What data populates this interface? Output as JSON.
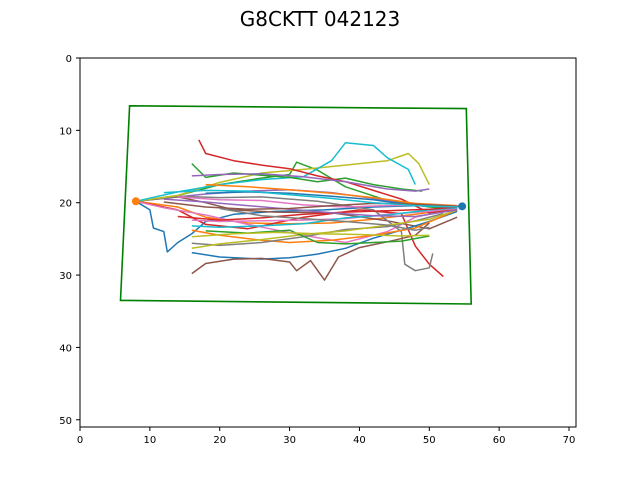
{
  "chart_data": {
    "type": "line",
    "title": "G8CKTT 042123",
    "xlabel": "",
    "ylabel": "",
    "xlim": [
      0,
      71
    ],
    "ylim": [
      51,
      0
    ],
    "y_inverted": true,
    "grid": false,
    "x_ticks": [
      0,
      10,
      20,
      30,
      40,
      50,
      60,
      70
    ],
    "y_ticks": [
      0,
      10,
      20,
      30,
      40,
      50
    ],
    "boundary": {
      "color": "#008000",
      "points": [
        [
          7.1,
          6.6
        ],
        [
          55.3,
          7.0
        ],
        [
          56.0,
          34.0
        ],
        [
          5.8,
          33.5
        ]
      ]
    },
    "start_marker": {
      "x": 8.0,
      "y": 19.8,
      "color": "#ff7f0e"
    },
    "end_marker": {
      "x": 54.7,
      "y": 20.5,
      "color": "#1f77b4"
    },
    "series": [
      {
        "color": "#1f77b4",
        "points": [
          [
            8,
            19.8
          ],
          [
            10,
            21
          ],
          [
            10.5,
            23.5
          ],
          [
            12,
            24
          ],
          [
            12.5,
            26.8
          ],
          [
            14,
            25.5
          ],
          [
            16,
            24.3
          ],
          [
            18,
            22.6
          ],
          [
            22,
            21.6
          ],
          [
            28,
            21.2
          ],
          [
            35,
            21
          ],
          [
            42,
            20.6
          ],
          [
            48,
            20.4
          ],
          [
            54.7,
            20.5
          ]
        ]
      },
      {
        "color": "#ff7f0e",
        "points": [
          [
            8,
            19.8
          ],
          [
            14,
            20.6
          ],
          [
            18,
            22
          ],
          [
            24,
            22.8
          ],
          [
            30,
            22.9
          ],
          [
            36,
            22.8
          ],
          [
            42,
            22.3
          ],
          [
            48,
            21.6
          ],
          [
            54,
            20.8
          ]
        ]
      },
      {
        "color": "#2ca02c",
        "points": [
          [
            8,
            19.8
          ],
          [
            14,
            19
          ],
          [
            20,
            17.5
          ],
          [
            26,
            16.6
          ],
          [
            30,
            16.1
          ],
          [
            31,
            14.4
          ],
          [
            34,
            15.5
          ],
          [
            38,
            17.8
          ],
          [
            44,
            19.7
          ],
          [
            50,
            20.6
          ],
          [
            54,
            20.8
          ]
        ]
      },
      {
        "color": "#d62728",
        "points": [
          [
            8,
            19.8
          ],
          [
            14,
            21
          ],
          [
            18,
            23
          ],
          [
            24,
            23.6
          ],
          [
            32,
            22
          ],
          [
            40,
            21
          ],
          [
            46,
            21.5
          ],
          [
            48,
            26
          ],
          [
            50,
            28.5
          ],
          [
            52,
            30.2
          ]
        ]
      },
      {
        "color": "#9467bd",
        "points": [
          [
            8,
            19.8
          ],
          [
            12,
            19.4
          ],
          [
            18,
            18.8
          ],
          [
            24,
            18.4
          ],
          [
            30,
            18.2
          ],
          [
            36,
            18.6
          ],
          [
            42,
            19.4
          ],
          [
            48,
            20.4
          ],
          [
            54,
            20.6
          ]
        ]
      },
      {
        "color": "#8c564b",
        "points": [
          [
            8,
            19.8
          ],
          [
            14,
            19.2
          ],
          [
            18,
            20
          ],
          [
            22,
            21
          ],
          [
            28,
            21.3
          ],
          [
            36,
            21.4
          ],
          [
            44,
            22.5
          ],
          [
            50,
            23.6
          ],
          [
            54,
            22
          ]
        ]
      },
      {
        "color": "#e377c2",
        "points": [
          [
            8,
            19.8
          ],
          [
            12,
            20.7
          ],
          [
            18,
            21.7
          ],
          [
            24,
            23
          ],
          [
            32,
            24.5
          ],
          [
            38,
            25.5
          ],
          [
            44,
            24
          ],
          [
            48,
            22
          ],
          [
            54,
            20.8
          ]
        ]
      },
      {
        "color": "#7f7f7f",
        "points": [
          [
            8,
            19.8
          ],
          [
            14,
            19.1
          ],
          [
            20,
            19.3
          ],
          [
            26,
            19.2
          ],
          [
            34,
            19.8
          ],
          [
            42,
            21
          ],
          [
            46,
            24
          ],
          [
            46.5,
            28.5
          ],
          [
            48,
            29.4
          ],
          [
            50,
            29
          ],
          [
            50.5,
            27
          ]
        ]
      },
      {
        "color": "#bcbd22",
        "points": [
          [
            8,
            19.8
          ],
          [
            14,
            19
          ],
          [
            20,
            17.2
          ],
          [
            26,
            15.9
          ],
          [
            32,
            15.4
          ],
          [
            38,
            14.8
          ],
          [
            44,
            14.2
          ],
          [
            47,
            13.2
          ],
          [
            48.5,
            14.6
          ],
          [
            50,
            17.5
          ]
        ]
      },
      {
        "color": "#17becf",
        "points": [
          [
            8,
            19.8
          ],
          [
            14,
            18.5
          ],
          [
            20,
            17.5
          ],
          [
            26,
            16.8
          ],
          [
            32,
            16.4
          ],
          [
            36,
            14.2
          ],
          [
            38,
            11.7
          ],
          [
            42,
            12.1
          ],
          [
            44,
            13.8
          ],
          [
            47,
            15.4
          ],
          [
            48,
            17.5
          ]
        ]
      },
      {
        "color": "#1f77b4",
        "points": [
          [
            16,
            26.9
          ],
          [
            20,
            27.5
          ],
          [
            26,
            27.8
          ],
          [
            30,
            27.6
          ],
          [
            34,
            27.1
          ],
          [
            38,
            26.3
          ],
          [
            42,
            24.9
          ],
          [
            46,
            23.8
          ],
          [
            50,
            22.6
          ],
          [
            54,
            21.2
          ]
        ]
      },
      {
        "color": "#ff7f0e",
        "points": [
          [
            16,
            23.8
          ],
          [
            20,
            24.5
          ],
          [
            26,
            25.2
          ],
          [
            30,
            25.5
          ],
          [
            36,
            25.2
          ],
          [
            42,
            24.5
          ],
          [
            48,
            23.5
          ],
          [
            54,
            21
          ]
        ]
      },
      {
        "color": "#2ca02c",
        "points": [
          [
            16,
            14.6
          ],
          [
            18,
            16.5
          ],
          [
            22,
            15.9
          ],
          [
            26,
            16.2
          ],
          [
            30,
            16.5
          ],
          [
            34,
            17.1
          ],
          [
            38,
            16.6
          ],
          [
            42,
            17.5
          ],
          [
            46,
            18.1
          ],
          [
            49,
            18.4
          ]
        ]
      },
      {
        "color": "#d62728",
        "points": [
          [
            17,
            11.3
          ],
          [
            18,
            13.2
          ],
          [
            22,
            14.2
          ],
          [
            26,
            14.8
          ],
          [
            30,
            15.3
          ],
          [
            34,
            16.3
          ],
          [
            38,
            17.1
          ],
          [
            42,
            18.3
          ],
          [
            46,
            19.5
          ],
          [
            50,
            21.4
          ],
          [
            54,
            21
          ]
        ]
      },
      {
        "color": "#9467bd",
        "points": [
          [
            16,
            16.3
          ],
          [
            20,
            16.1
          ],
          [
            26,
            16
          ],
          [
            32,
            16.4
          ],
          [
            38,
            17.1
          ],
          [
            44,
            18.1
          ],
          [
            48,
            18.4
          ],
          [
            50,
            18.1
          ]
        ]
      },
      {
        "color": "#8c564b",
        "points": [
          [
            16,
            29.8
          ],
          [
            18,
            28.4
          ],
          [
            22,
            27.8
          ],
          [
            26,
            27.7
          ],
          [
            30,
            28.2
          ],
          [
            31,
            29.4
          ],
          [
            33,
            28
          ],
          [
            35,
            30.7
          ],
          [
            37,
            27.5
          ],
          [
            40,
            26.2
          ],
          [
            44,
            25.4
          ],
          [
            48,
            24.5
          ],
          [
            50,
            22.8
          ]
        ]
      },
      {
        "color": "#e377c2",
        "points": [
          [
            16,
            22.4
          ],
          [
            20,
            22.6
          ],
          [
            26,
            22.5
          ],
          [
            32,
            22.4
          ],
          [
            38,
            22.2
          ],
          [
            44,
            21.6
          ],
          [
            50,
            21.2
          ],
          [
            54,
            20.7
          ]
        ]
      },
      {
        "color": "#7f7f7f",
        "points": [
          [
            16,
            25.6
          ],
          [
            20,
            25.9
          ],
          [
            26,
            25.5
          ],
          [
            32,
            24.7
          ],
          [
            38,
            23.7
          ],
          [
            44,
            23.3
          ],
          [
            48,
            22.5
          ],
          [
            52,
            21.5
          ]
        ]
      },
      {
        "color": "#bcbd22",
        "points": [
          [
            16,
            26.3
          ],
          [
            20,
            25.7
          ],
          [
            26,
            25.1
          ],
          [
            32,
            24.4
          ],
          [
            38,
            23.9
          ],
          [
            44,
            23.1
          ],
          [
            50,
            22.3
          ],
          [
            54,
            21
          ]
        ]
      },
      {
        "color": "#17becf",
        "points": [
          [
            16,
            23.2
          ],
          [
            20,
            23.4
          ],
          [
            26,
            23.2
          ],
          [
            32,
            22.9
          ],
          [
            38,
            22.1
          ],
          [
            44,
            21.7
          ],
          [
            50,
            21
          ],
          [
            54,
            20.7
          ]
        ]
      },
      {
        "color": "#1f77b4",
        "points": [
          [
            18,
            18.7
          ],
          [
            24,
            18.5
          ],
          [
            30,
            18.7
          ],
          [
            36,
            19.1
          ],
          [
            42,
            19.6
          ],
          [
            48,
            20.4
          ],
          [
            54,
            20.6
          ]
        ]
      },
      {
        "color": "#ff7f0e",
        "points": [
          [
            18,
            17.5
          ],
          [
            24,
            17.8
          ],
          [
            30,
            18.2
          ],
          [
            36,
            18.7
          ],
          [
            42,
            19.3
          ],
          [
            48,
            20.1
          ],
          [
            54,
            20.4
          ]
        ]
      },
      {
        "color": "#2ca02c",
        "points": [
          [
            18,
            23.9
          ],
          [
            24,
            24.2
          ],
          [
            30,
            23.8
          ],
          [
            34,
            25.5
          ],
          [
            38,
            25.7
          ],
          [
            42,
            25.5
          ],
          [
            46,
            25.3
          ],
          [
            50,
            24.6
          ]
        ]
      },
      {
        "color": "#d62728",
        "points": [
          [
            14,
            21.9
          ],
          [
            20,
            22.4
          ],
          [
            26,
            22.1
          ],
          [
            32,
            21.6
          ],
          [
            38,
            21.3
          ],
          [
            44,
            21.1
          ],
          [
            50,
            20.9
          ],
          [
            54,
            20.6
          ]
        ]
      },
      {
        "color": "#9467bd",
        "points": [
          [
            12,
            19.5
          ],
          [
            18,
            19.9
          ],
          [
            24,
            20.4
          ],
          [
            30,
            20.9
          ],
          [
            36,
            21.4
          ],
          [
            42,
            21.8
          ],
          [
            48,
            21.9
          ],
          [
            54,
            21
          ]
        ]
      },
      {
        "color": "#e377c2",
        "points": [
          [
            14,
            19.2
          ],
          [
            20,
            19.6
          ],
          [
            26,
            19.7
          ],
          [
            32,
            20.3
          ],
          [
            38,
            20.6
          ],
          [
            44,
            20.4
          ],
          [
            50,
            20.3
          ],
          [
            54,
            20.5
          ]
        ]
      },
      {
        "color": "#8c564b",
        "points": [
          [
            12,
            19.9
          ],
          [
            18,
            20.6
          ],
          [
            24,
            20.9
          ],
          [
            30,
            20.8
          ],
          [
            36,
            20.4
          ],
          [
            42,
            20.1
          ],
          [
            48,
            20.2
          ],
          [
            54,
            20.5
          ]
        ]
      },
      {
        "color": "#7f7f7f",
        "points": [
          [
            20,
            20.8
          ],
          [
            26,
            21.8
          ],
          [
            32,
            22.2
          ],
          [
            38,
            22.6
          ],
          [
            44,
            23.1
          ],
          [
            48,
            23.8
          ],
          [
            50,
            23.4
          ]
        ]
      },
      {
        "color": "#bcbd22",
        "points": [
          [
            16,
            24.7
          ],
          [
            22,
            24.3
          ],
          [
            28,
            24.1
          ],
          [
            34,
            24.3
          ],
          [
            40,
            24.4
          ],
          [
            46,
            24.6
          ],
          [
            50,
            24.5
          ]
        ]
      },
      {
        "color": "#17becf",
        "points": [
          [
            12,
            18.6
          ],
          [
            18,
            18.3
          ],
          [
            24,
            18.4
          ],
          [
            30,
            18.9
          ],
          [
            36,
            19.4
          ],
          [
            42,
            20
          ],
          [
            48,
            20.4
          ],
          [
            54,
            20.6
          ]
        ]
      }
    ]
  }
}
